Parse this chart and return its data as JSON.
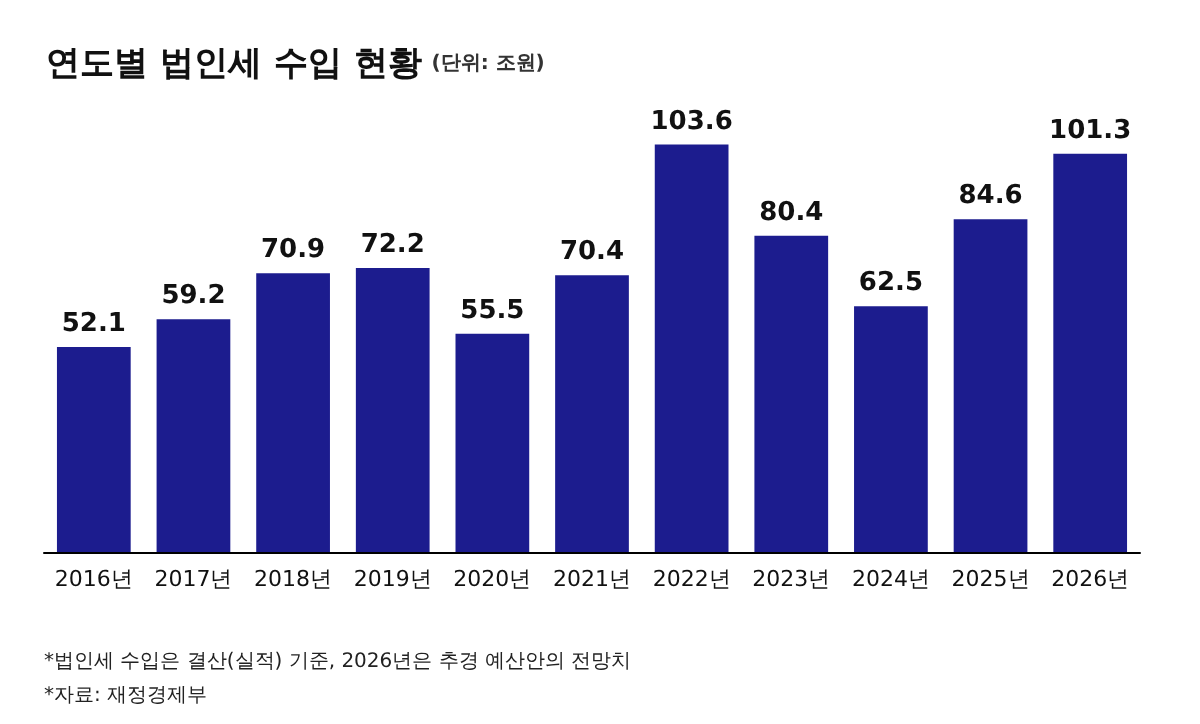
{
  "chart_data": {
    "type": "bar",
    "title": "연도별 법인세 수입 현황",
    "subtitle": "(단위: 조원)",
    "categories": [
      "2016년",
      "2017년",
      "2018년",
      "2019년",
      "2020년",
      "2021년",
      "2022년",
      "2023년",
      "2024년",
      "2025년",
      "2026년"
    ],
    "values": [
      52.1,
      59.2,
      70.9,
      72.2,
      55.5,
      70.4,
      103.6,
      80.4,
      62.5,
      84.6,
      101.3
    ],
    "color": "#1c1c8e",
    "data_labels": true,
    "annotations": [
      "*법인세 수입은 결산(실적) 기준, 2026년은 추경 예산안의 전망치",
      "*자료: 재정경제부"
    ]
  }
}
